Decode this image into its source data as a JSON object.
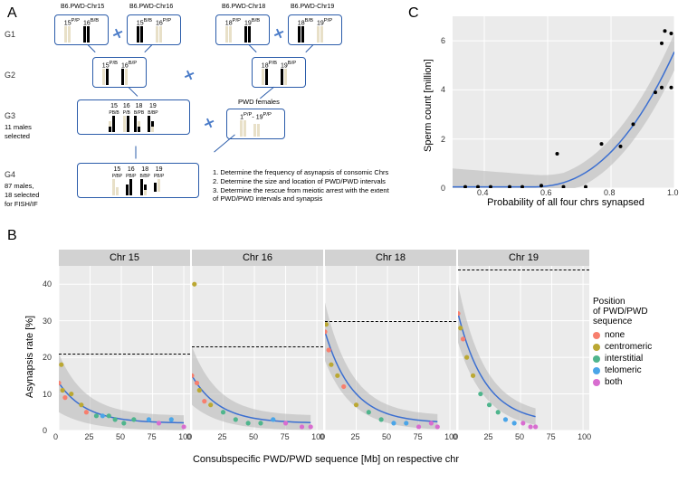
{
  "labels": {
    "A": "A",
    "B": "B",
    "C": "C"
  },
  "panelA": {
    "generations": [
      "G1",
      "G2",
      "G3",
      "G4"
    ],
    "g3_text_line1": "11 males",
    "g3_text_line2": "selected",
    "g4_text_line1": "87 males,",
    "g4_text_line2": "18 selected",
    "g4_text_line3": "for FISH/IF",
    "pwd_females": "PWD females",
    "strain_names": [
      "B6.PWD-Chr15",
      "B6.PWD-Chr16",
      "B6.PWD-Chr18",
      "B6.PWD-Chr19"
    ],
    "notes": [
      "1. Determine the frequency of asynapsis of consomic Chrs",
      "2. Determine the size and location of PWD/PWD intervals",
      "3. Determine the rescue from meiotic arrest with the extent",
      "    of PWD/PWD intervals and synapsis"
    ],
    "g1_labels": [
      "15",
      "16",
      "15",
      "16",
      "18",
      "19",
      "18",
      "19"
    ],
    "g1_super": [
      "P/P",
      "B/B",
      "B/B",
      "P/P",
      "P/P",
      "B/B",
      "B/B",
      "P/P"
    ],
    "g2_labels": [
      "15",
      "16",
      "18",
      "19"
    ],
    "g2_super": [
      "P/B",
      "B/P",
      "P/B",
      "B/P"
    ],
    "g3_labels": [
      "15",
      "16",
      "18",
      "19"
    ],
    "g3_super": [
      "PB/B",
      "P/B",
      "B/PB",
      "B/BP"
    ],
    "g3_pwd_labels": [
      "1",
      "19"
    ],
    "g3_pwd_super": [
      "P/P",
      "P/P"
    ],
    "g4_labels": [
      "15",
      "16",
      "18",
      "19"
    ],
    "g4_super": [
      "P/BP",
      "B",
      "PB/P",
      "B",
      "B",
      "B/BP",
      "B",
      "PB/P"
    ]
  },
  "panelC": {
    "ylabel": "Sperm count [million]",
    "xlabel": "Probability of all four chrs synapsed",
    "xlim": [
      0.3,
      1.0
    ],
    "ylim": [
      0,
      7
    ],
    "xticks": [
      0.4,
      0.6,
      0.8,
      1.0
    ],
    "yticks": [
      0,
      2,
      4,
      6
    ],
    "points": [
      {
        "x": 0.34,
        "y": 0.05
      },
      {
        "x": 0.38,
        "y": 0.05
      },
      {
        "x": 0.42,
        "y": 0.05
      },
      {
        "x": 0.48,
        "y": 0.05
      },
      {
        "x": 0.52,
        "y": 0.05
      },
      {
        "x": 0.58,
        "y": 0.1
      },
      {
        "x": 0.63,
        "y": 1.4
      },
      {
        "x": 0.65,
        "y": 0.05
      },
      {
        "x": 0.72,
        "y": 0.05
      },
      {
        "x": 0.77,
        "y": 1.8
      },
      {
        "x": 0.83,
        "y": 1.7
      },
      {
        "x": 0.87,
        "y": 2.6
      },
      {
        "x": 0.94,
        "y": 3.9
      },
      {
        "x": 0.96,
        "y": 4.1
      },
      {
        "x": 0.96,
        "y": 5.9
      },
      {
        "x": 0.97,
        "y": 6.4
      },
      {
        "x": 0.99,
        "y": 4.1
      },
      {
        "x": 0.99,
        "y": 6.3
      }
    ],
    "curve_color": "#3b6fd1",
    "ribbon_color": "#b7b7b7",
    "bg": "#ebebeb",
    "grid": "#ffffff"
  },
  "panelB": {
    "ylabel": "Asynapsis rate [%]",
    "xlabel": "Consubspecific PWD/PWD sequence [Mb] on respective chr",
    "ylim": [
      0,
      45
    ],
    "xlim": [
      0,
      105
    ],
    "yticks": [
      0,
      10,
      20,
      30,
      40
    ],
    "xticks": [
      0,
      25,
      50,
      75,
      100
    ],
    "facets": [
      {
        "title": "Chr 15",
        "dash": 21,
        "points": [
          {
            "x": 0,
            "y": 13,
            "c": "none"
          },
          {
            "x": 2,
            "y": 18,
            "c": "centromeric"
          },
          {
            "x": 3,
            "y": 11,
            "c": "centromeric"
          },
          {
            "x": 5,
            "y": 9,
            "c": "none"
          },
          {
            "x": 10,
            "y": 10,
            "c": "centromeric"
          },
          {
            "x": 18,
            "y": 7,
            "c": "centromeric"
          },
          {
            "x": 22,
            "y": 5,
            "c": "none"
          },
          {
            "x": 30,
            "y": 4,
            "c": "interstitial"
          },
          {
            "x": 35,
            "y": 4,
            "c": "telomeric"
          },
          {
            "x": 40,
            "y": 4,
            "c": "interstitial"
          },
          {
            "x": 45,
            "y": 3,
            "c": "interstitial"
          },
          {
            "x": 52,
            "y": 2,
            "c": "interstitial"
          },
          {
            "x": 60,
            "y": 3,
            "c": "interstitial"
          },
          {
            "x": 72,
            "y": 3,
            "c": "telomeric"
          },
          {
            "x": 80,
            "y": 2,
            "c": "both"
          },
          {
            "x": 90,
            "y": 3,
            "c": "telomeric"
          },
          {
            "x": 100,
            "y": 1,
            "c": "both"
          }
        ]
      },
      {
        "title": "Chr 16",
        "dash": 23,
        "points": [
          {
            "x": 0,
            "y": 15,
            "c": "none"
          },
          {
            "x": 2,
            "y": 40,
            "c": "centromeric"
          },
          {
            "x": 4,
            "y": 13,
            "c": "none"
          },
          {
            "x": 6,
            "y": 11,
            "c": "centromeric"
          },
          {
            "x": 10,
            "y": 8,
            "c": "none"
          },
          {
            "x": 15,
            "y": 7,
            "c": "centromeric"
          },
          {
            "x": 25,
            "y": 5,
            "c": "interstitial"
          },
          {
            "x": 35,
            "y": 3,
            "c": "interstitial"
          },
          {
            "x": 45,
            "y": 2,
            "c": "interstitial"
          },
          {
            "x": 55,
            "y": 2,
            "c": "interstitial"
          },
          {
            "x": 65,
            "y": 3,
            "c": "telomeric"
          },
          {
            "x": 75,
            "y": 2,
            "c": "both"
          },
          {
            "x": 88,
            "y": 1,
            "c": "both"
          },
          {
            "x": 95,
            "y": 1,
            "c": "both"
          }
        ]
      },
      {
        "title": "Chr 18",
        "dash": 30,
        "points": [
          {
            "x": 0,
            "y": 27,
            "c": "none"
          },
          {
            "x": 1,
            "y": 29,
            "c": "centromeric"
          },
          {
            "x": 3,
            "y": 22,
            "c": "none"
          },
          {
            "x": 5,
            "y": 18,
            "c": "centromeric"
          },
          {
            "x": 10,
            "y": 15,
            "c": "centromeric"
          },
          {
            "x": 15,
            "y": 12,
            "c": "none"
          },
          {
            "x": 25,
            "y": 7,
            "c": "centromeric"
          },
          {
            "x": 35,
            "y": 5,
            "c": "interstitial"
          },
          {
            "x": 45,
            "y": 3,
            "c": "interstitial"
          },
          {
            "x": 55,
            "y": 2,
            "c": "telomeric"
          },
          {
            "x": 65,
            "y": 2,
            "c": "telomeric"
          },
          {
            "x": 75,
            "y": 1,
            "c": "both"
          },
          {
            "x": 85,
            "y": 2,
            "c": "both"
          },
          {
            "x": 90,
            "y": 1,
            "c": "both"
          }
        ]
      },
      {
        "title": "Chr 19",
        "dash": 44,
        "points": [
          {
            "x": 0,
            "y": 32,
            "c": "none"
          },
          {
            "x": 2,
            "y": 28,
            "c": "centromeric"
          },
          {
            "x": 4,
            "y": 25,
            "c": "none"
          },
          {
            "x": 7,
            "y": 20,
            "c": "centromeric"
          },
          {
            "x": 12,
            "y": 15,
            "c": "centromeric"
          },
          {
            "x": 18,
            "y": 10,
            "c": "interstitial"
          },
          {
            "x": 25,
            "y": 7,
            "c": "interstitial"
          },
          {
            "x": 32,
            "y": 5,
            "c": "interstitial"
          },
          {
            "x": 38,
            "y": 3,
            "c": "telomeric"
          },
          {
            "x": 45,
            "y": 2,
            "c": "telomeric"
          },
          {
            "x": 52,
            "y": 2,
            "c": "both"
          },
          {
            "x": 58,
            "y": 1,
            "c": "both"
          },
          {
            "x": 62,
            "y": 1,
            "c": "both"
          }
        ]
      }
    ],
    "legend_title_l1": "Position",
    "legend_title_l2": "of PWD/PWD",
    "legend_title_l3": "sequence",
    "legend_items": [
      {
        "label": "none",
        "color": "#f77f6e"
      },
      {
        "label": "centromeric",
        "color": "#bba833"
      },
      {
        "label": "interstitial",
        "color": "#4fb58d"
      },
      {
        "label": "telomeric",
        "color": "#4aa5e8"
      },
      {
        "label": "both",
        "color": "#d86dd0"
      }
    ],
    "curve_color": "#3b6fd1",
    "ribbon_color": "#b7b7b7",
    "bg": "#ebebeb",
    "grid": "#ffffff"
  }
}
